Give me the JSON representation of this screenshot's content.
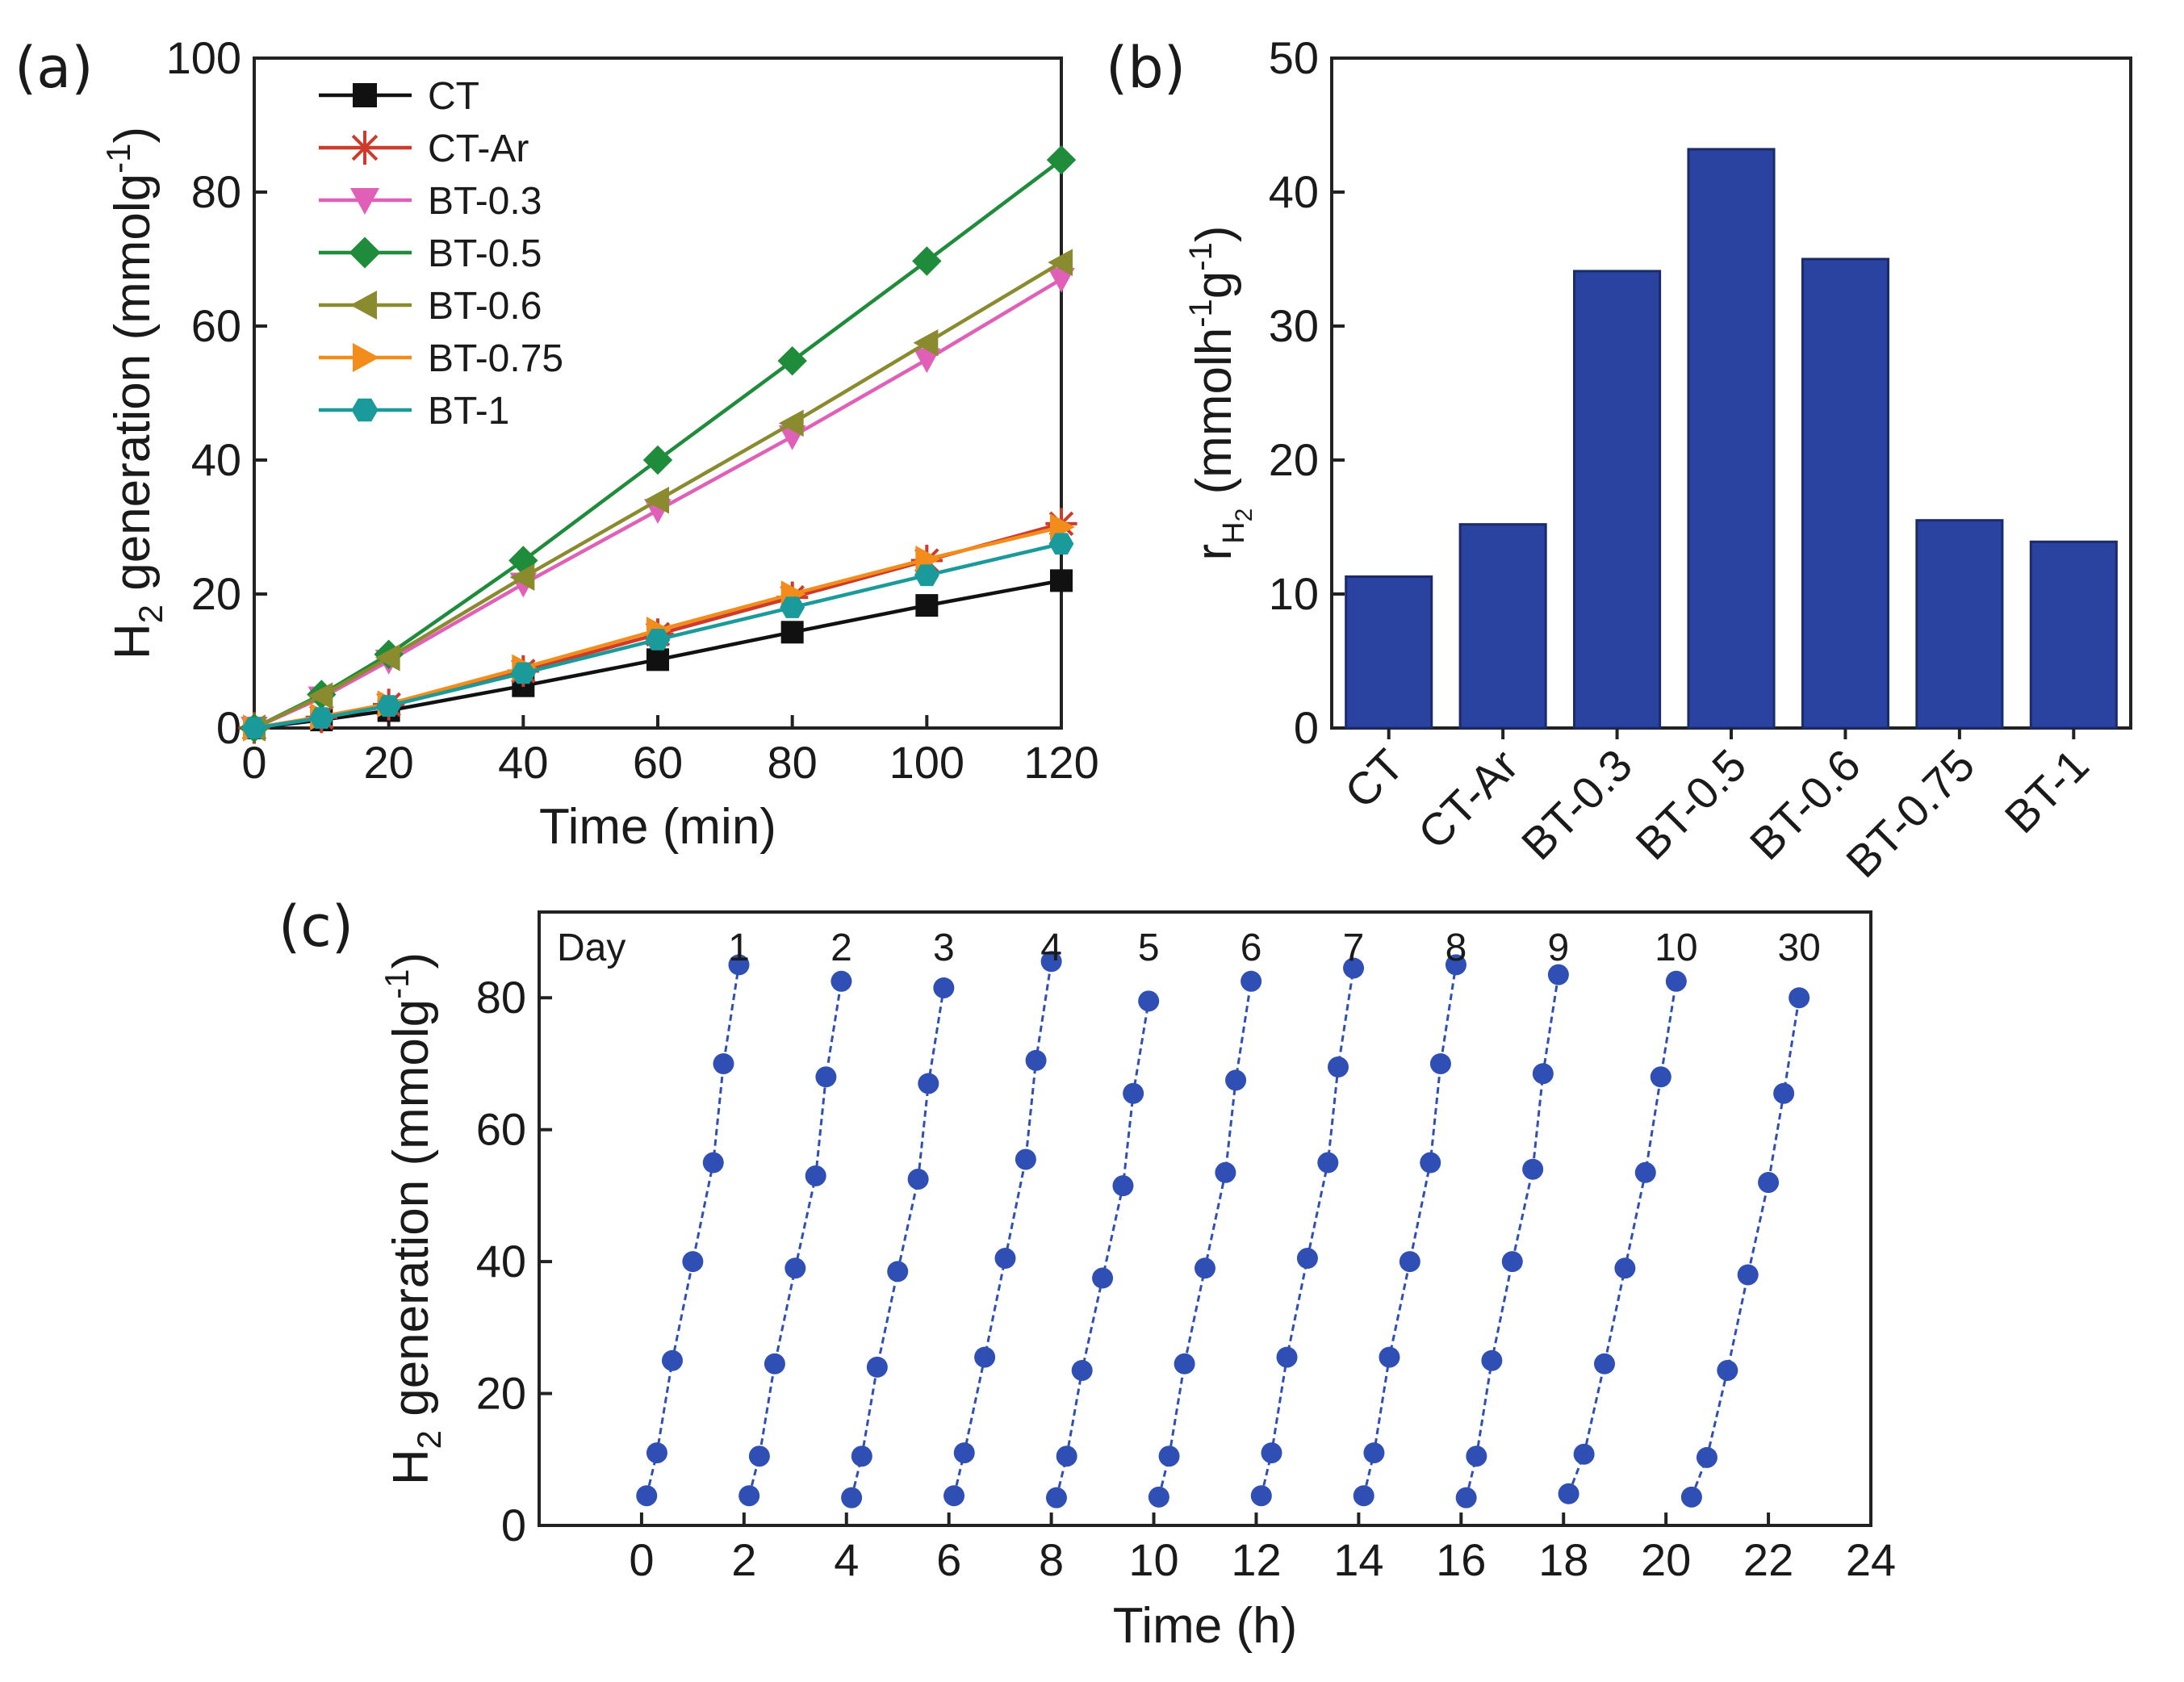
{
  "chart_data": [
    {
      "panel_label": "(a)",
      "type": "line",
      "xlabel": "Time (min)",
      "ylabel_main": "H",
      "ylabel_sub": "2",
      "ylabel_rest": " generation (mmolg",
      "ylabel_sup": "-1",
      "ylabel_close": ")",
      "xlim": [
        0,
        120
      ],
      "ylim": [
        0,
        100
      ],
      "xticks": [
        0,
        20,
        40,
        60,
        80,
        100,
        120
      ],
      "yticks": [
        0,
        20,
        40,
        60,
        80,
        100
      ],
      "x": [
        0,
        10,
        20,
        40,
        60,
        80,
        100,
        120
      ],
      "legend_position": "top-left",
      "series": [
        {
          "name": "CT",
          "color": "#111111",
          "marker": "square",
          "values": [
            0,
            1.2,
            2.6,
            6.3,
            10.2,
            14.3,
            18.3,
            22.0
          ]
        },
        {
          "name": "CT-Ar",
          "color": "#cc3b2b",
          "marker": "asterisk",
          "values": [
            0,
            1.6,
            3.5,
            8.5,
            14.0,
            19.5,
            25.0,
            30.5
          ]
        },
        {
          "name": "BT-0.3",
          "color": "#e060b8",
          "marker": "triangle-down",
          "values": [
            0,
            4.5,
            10.0,
            21.5,
            32.5,
            43.5,
            55.0,
            67.0
          ]
        },
        {
          "name": "BT-0.5",
          "color": "#1e8c3a",
          "marker": "diamond",
          "values": [
            0,
            5.0,
            11.0,
            25.0,
            40.0,
            54.8,
            69.7,
            84.8
          ]
        },
        {
          "name": "BT-0.6",
          "color": "#8a8a2e",
          "marker": "triangle-left",
          "values": [
            0,
            4.8,
            10.5,
            22.5,
            34.0,
            45.5,
            57.5,
            69.5
          ]
        },
        {
          "name": "BT-0.75",
          "color": "#f28c1a",
          "marker": "triangle-right",
          "values": [
            0,
            1.7,
            3.6,
            9.0,
            14.6,
            20.0,
            25.2,
            30.0
          ]
        },
        {
          "name": "BT-1",
          "color": "#1a9a9a",
          "marker": "hexagon",
          "values": [
            0,
            1.5,
            3.3,
            8.2,
            13.2,
            18.0,
            22.8,
            27.5
          ]
        }
      ]
    },
    {
      "panel_label": "(b)",
      "type": "bar",
      "bar_color": "#2a43a0",
      "categories": [
        "CT",
        "CT-Ar",
        "BT-0.3",
        "BT-0.5",
        "BT-0.6",
        "BT-0.75",
        "BT-1"
      ],
      "values": [
        11.3,
        15.2,
        34.1,
        43.2,
        35.0,
        15.5,
        13.9
      ],
      "ylim": [
        0,
        50
      ],
      "yticks": [
        0,
        10,
        20,
        30,
        40,
        50
      ],
      "ylabel_main": "r",
      "ylabel_sub": "H",
      "ylabel_subsub": "2",
      "ylabel_rest": " (mmolh",
      "ylabel_sup1": "-1",
      "ylabel_mid": "g",
      "ylabel_sup2": "-1",
      "ylabel_close": ")"
    },
    {
      "panel_label": "(c)",
      "type": "line",
      "color": "#2f4fb5",
      "xlabel": "Time (h)",
      "ylabel_main": "H",
      "ylabel_sub": "2",
      "ylabel_rest": " generation (mmolg",
      "ylabel_sup": "-1",
      "ylabel_close": ")",
      "xlim": [
        -2,
        24
      ],
      "ylim": [
        0,
        93
      ],
      "xticks": [
        0,
        2,
        4,
        6,
        8,
        10,
        12,
        14,
        16,
        18,
        20,
        22,
        24
      ],
      "yticks": [
        0,
        20,
        40,
        60,
        80
      ],
      "day_header": "Day",
      "cycles": [
        {
          "day": "1",
          "x": [
            0.1,
            0.3,
            0.6,
            1.0,
            1.4,
            1.6,
            1.9
          ],
          "y": [
            4.5,
            11,
            25,
            40,
            55,
            70,
            85
          ]
        },
        {
          "day": "2",
          "x": [
            2.1,
            2.3,
            2.6,
            3.0,
            3.4,
            3.6,
            3.9
          ],
          "y": [
            4.5,
            10.5,
            24.5,
            39,
            53,
            68,
            82.5
          ]
        },
        {
          "day": "3",
          "x": [
            4.1,
            4.3,
            4.6,
            5.0,
            5.4,
            5.6,
            5.9
          ],
          "y": [
            4.2,
            10.5,
            24,
            38.5,
            52.5,
            67,
            81.5
          ]
        },
        {
          "day": "4",
          "x": [
            6.1,
            6.3,
            6.7,
            7.1,
            7.5,
            7.7,
            8.0
          ],
          "y": [
            4.5,
            11,
            25.5,
            40.5,
            55.5,
            70.5,
            85.5
          ]
        },
        {
          "day": "5",
          "x": [
            8.1,
            8.3,
            8.6,
            9.0,
            9.4,
            9.6,
            9.9
          ],
          "y": [
            4.2,
            10.5,
            23.5,
            37.5,
            51.5,
            65.5,
            79.5
          ]
        },
        {
          "day": "6",
          "x": [
            10.1,
            10.3,
            10.6,
            11.0,
            11.4,
            11.6,
            11.9
          ],
          "y": [
            4.3,
            10.5,
            24.5,
            39,
            53.5,
            67.5,
            82.5
          ]
        },
        {
          "day": "7",
          "x": [
            12.1,
            12.3,
            12.6,
            13.0,
            13.4,
            13.6,
            13.9
          ],
          "y": [
            4.5,
            11,
            25.5,
            40.5,
            55,
            69.5,
            84.5
          ]
        },
        {
          "day": "8",
          "x": [
            14.1,
            14.3,
            14.6,
            15.0,
            15.4,
            15.6,
            15.9
          ],
          "y": [
            4.5,
            11,
            25.5,
            40,
            55,
            70,
            85
          ]
        },
        {
          "day": "9",
          "x": [
            16.1,
            16.3,
            16.6,
            17.0,
            17.4,
            17.6,
            17.9
          ],
          "y": [
            4.2,
            10.5,
            25,
            40,
            54,
            68.5,
            83.5
          ]
        },
        {
          "day": "10",
          "x": [
            18.1,
            18.4,
            18.8,
            19.2,
            19.6,
            19.9,
            20.2
          ],
          "y": [
            4.8,
            10.8,
            24.5,
            39,
            53.5,
            68,
            82.5
          ]
        },
        {
          "day": "30",
          "x": [
            20.5,
            20.8,
            21.2,
            21.6,
            22.0,
            22.3,
            22.6
          ],
          "y": [
            4.3,
            10.3,
            23.5,
            38,
            52,
            65.5,
            80
          ]
        }
      ]
    }
  ]
}
